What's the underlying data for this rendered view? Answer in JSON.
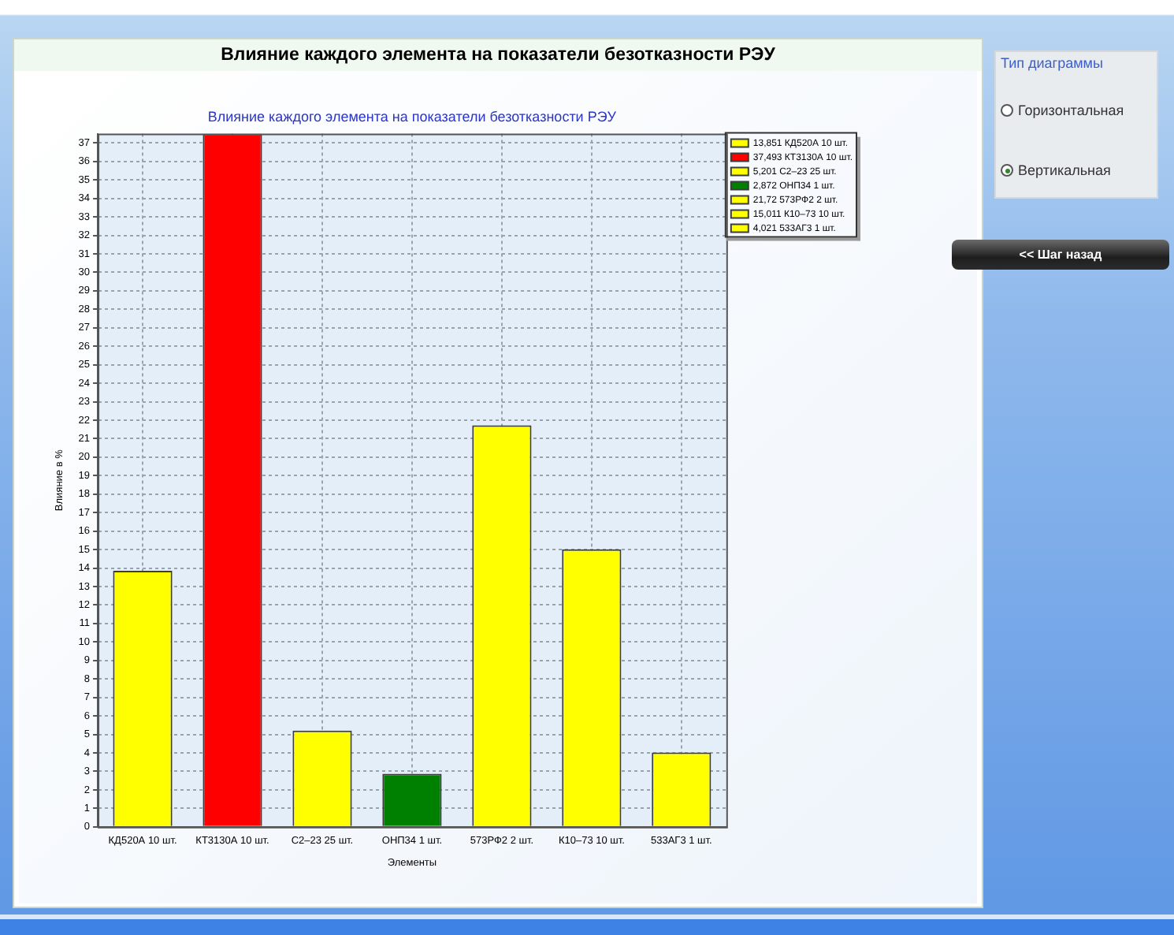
{
  "chart_data": [
    {
      "type": "bar",
      "title": "Влияние каждого элемента на показатели безотказности РЭУ",
      "subtitle": "Влияние каждого элемента на показатели безотказности РЭУ",
      "xlabel": "Элементы",
      "ylabel": "Влияние в %",
      "categories": [
        "КД520А 10 шт.",
        "КТ3130А 10 шт.",
        "С2–23 25 шт.",
        "ОНП34 1 шт.",
        "573РФ2 2 шт.",
        "К10–73 10 шт.",
        "533АГ3 1 шт."
      ],
      "series": [
        {
          "name": "13,851 КД520А 10 шт.",
          "color": "#ffff00",
          "values": [
            13.851,
            null,
            null,
            null,
            null,
            null,
            null
          ]
        },
        {
          "name": "37,493 КТ3130А 10 шт.",
          "color": "#ff0000",
          "values": [
            null,
            37.493,
            null,
            null,
            null,
            null,
            null
          ]
        },
        {
          "name": "5,201 С2–23 25 шт.",
          "color": "#ffff00",
          "values": [
            null,
            null,
            5.201,
            null,
            null,
            null,
            null
          ]
        },
        {
          "name": "2,872 ОНП34 1 шт.",
          "color": "#008000",
          "values": [
            null,
            null,
            null,
            2.872,
            null,
            null,
            null
          ]
        },
        {
          "name": "21,72 573РФ2 2 шт.",
          "color": "#ffff00",
          "values": [
            null,
            null,
            null,
            null,
            21.72,
            null,
            null
          ]
        },
        {
          "name": "15,011 К10–73 10 шт.",
          "color": "#ffff00",
          "values": [
            null,
            null,
            null,
            null,
            null,
            15.011,
            null
          ]
        },
        {
          "name": "4,021 533АГ3 1 шт.",
          "color": "#ffff00",
          "values": [
            null,
            null,
            null,
            null,
            null,
            null,
            4.021
          ]
        }
      ],
      "ylim": [
        0,
        37.5
      ],
      "yticks": [
        0,
        1,
        2,
        3,
        4,
        5,
        6,
        7,
        8,
        9,
        10,
        11,
        12,
        13,
        14,
        15,
        16,
        17,
        18,
        19,
        20,
        21,
        22,
        23,
        24,
        25,
        26,
        27,
        28,
        29,
        30,
        31,
        32,
        33,
        34,
        35,
        36,
        37
      ],
      "grid": true,
      "legend": "top right"
    },
    {
      "type": "other",
      "title": "Тип диаграммы",
      "annotations": [
        "Горизонтальная",
        "Вертикальная",
        "<< Шаг назад"
      ]
    }
  ]
}
